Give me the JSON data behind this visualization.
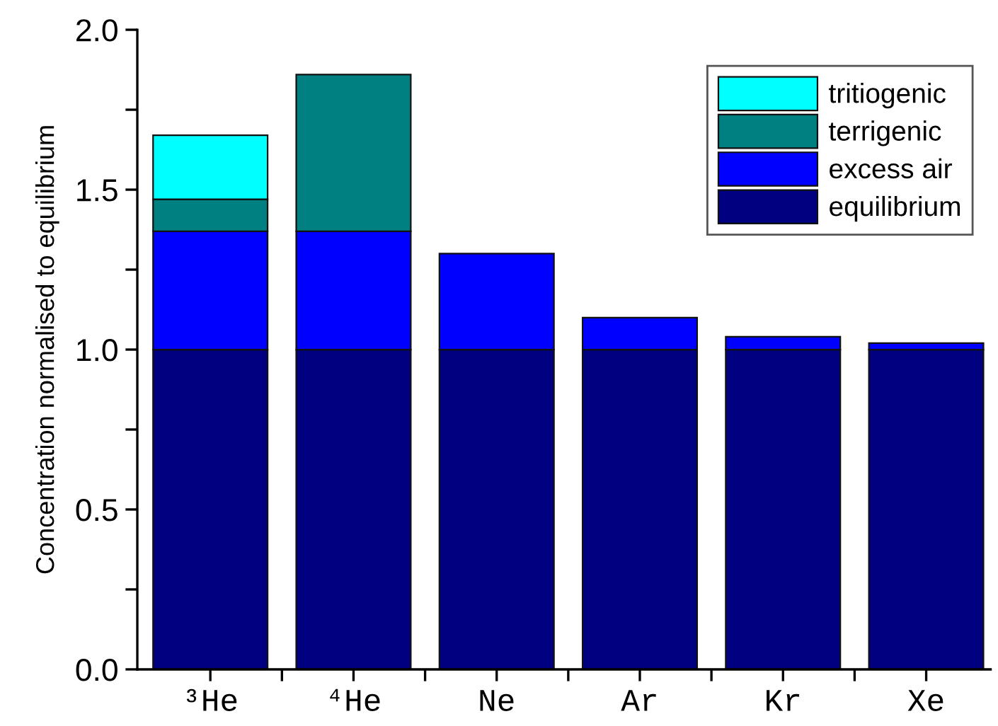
{
  "chart_data": {
    "type": "bar",
    "stacked": true,
    "categories": [
      "³He",
      "⁴He",
      "Ne",
      "Ar",
      "Kr",
      "Xe"
    ],
    "ylabel": "Concentration normalised to equilibrium",
    "series": [
      {
        "name": "equilibrium",
        "color": "#000080",
        "values": [
          1.0,
          1.0,
          1.0,
          1.0,
          1.0,
          1.0
        ]
      },
      {
        "name": "excess air",
        "color": "#0000ff",
        "values": [
          0.37,
          0.37,
          0.3,
          0.1,
          0.04,
          0.02
        ]
      },
      {
        "name": "terrigenic",
        "color": "#008080",
        "values": [
          0.1,
          0.49,
          null,
          null,
          null,
          null
        ]
      },
      {
        "name": "tritiogenic",
        "color": "#00ffff",
        "values": [
          0.2,
          null,
          null,
          null,
          null,
          null
        ]
      }
    ],
    "ylim": [
      0,
      2.0
    ],
    "yticks": [
      {
        "value": 0,
        "label": "0.0"
      },
      {
        "value": 0.25,
        "label": null
      },
      {
        "value": 0.5,
        "label": "0.5"
      },
      {
        "value": 0.75,
        "label": null
      },
      {
        "value": 1.0,
        "label": "1.0"
      },
      {
        "value": 1.25,
        "label": null
      },
      {
        "value": 1.5,
        "label": "1.5"
      },
      {
        "value": 1.75,
        "label": null
      },
      {
        "value": 2.0,
        "label": "2.0"
      }
    ],
    "grid": false,
    "legend": "top right"
  }
}
